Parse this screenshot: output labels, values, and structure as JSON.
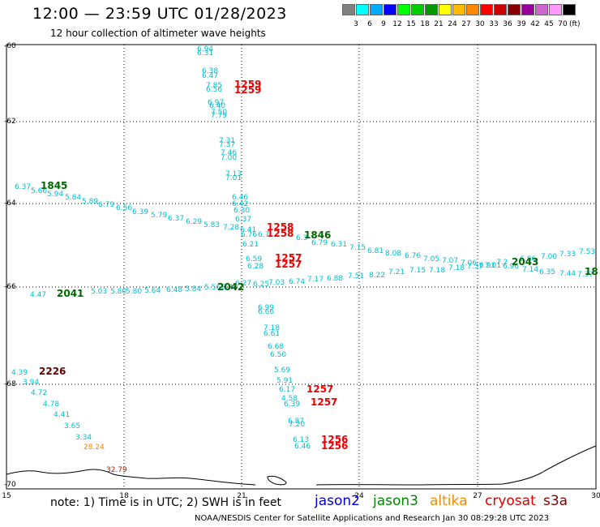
{
  "title": "12:00 — 23:59 UTC 01/28/2023",
  "subtitle": "12 hour collection of altimeter wave heights",
  "colorbar": {
    "colors": [
      "#808080",
      "#00ffff",
      "#00aaff",
      "#0000ff",
      "#00ff00",
      "#00cc00",
      "#009900",
      "#ffff00",
      "#ffbb00",
      "#ff8800",
      "#ff0000",
      "#cc0000",
      "#880000",
      "#990099",
      "#cc66cc",
      "#ff99ff",
      "#000000"
    ],
    "labels": [
      "3",
      "6",
      "9",
      "12",
      "15",
      "18",
      "21",
      "24",
      "27",
      "30",
      "33",
      "36",
      "39",
      "42",
      "45",
      "70"
    ],
    "unit": "(ft)"
  },
  "axes": {
    "x_ticks": [
      "15",
      "18",
      "21",
      "24",
      "27",
      "30"
    ],
    "y_ticks": [
      "-60",
      "-62",
      "-64",
      "-66",
      "-68",
      "-70"
    ]
  },
  "note": "note: 1) Time is in UTC; 2) SWH is in feet",
  "credit": "NOAA/NESDIS Center for Satellite Applications and Research    Jan 30 08:29:28 UTC 2023",
  "satellites": [
    {
      "name": "jason2",
      "color": "#0000dd"
    },
    {
      "name": "jason3",
      "color": "#008800"
    },
    {
      "name": "altika",
      "color": "#ff8800"
    },
    {
      "name": "cryosat",
      "color": "#dd0000"
    },
    {
      "name": "s3a",
      "color": "#880000"
    }
  ],
  "colors": {
    "cyan": "#00c0d0",
    "green": "#006600",
    "red": "#ee0000",
    "darkred": "#660000",
    "orange": "#ee8800",
    "brownred": "#aa2200"
  },
  "pass_labels": [
    {
      "text": "1845",
      "color": "green"
    },
    {
      "text": "1259",
      "color": "red"
    },
    {
      "text": "1259",
      "color": "red"
    },
    {
      "text": "1258",
      "color": "red"
    },
    {
      "text": "1258",
      "color": "red"
    },
    {
      "text": "1846",
      "color": "green"
    },
    {
      "text": "1257",
      "color": "red"
    },
    {
      "text": "1257",
      "color": "red"
    },
    {
      "text": "2042",
      "color": "green"
    },
    {
      "text": "2041",
      "color": "green"
    },
    {
      "text": "2043",
      "color": "green"
    },
    {
      "text": "18",
      "color": "green"
    },
    {
      "text": "2226",
      "color": "darkred"
    },
    {
      "text": "1257",
      "color": "red"
    },
    {
      "text": "1257",
      "color": "red"
    },
    {
      "text": "1256",
      "color": "red"
    },
    {
      "text": "1256",
      "color": "red"
    }
  ],
  "swh_values": [
    {
      "text": "6.94",
      "color": "cyan"
    },
    {
      "text": "6.31",
      "color": "cyan"
    },
    {
      "text": "6.38",
      "color": "cyan"
    },
    {
      "text": "6.47",
      "color": "cyan"
    },
    {
      "text": "7.85",
      "color": "cyan"
    },
    {
      "text": "6.56",
      "color": "cyan"
    },
    {
      "text": "6.97",
      "color": "cyan"
    },
    {
      "text": "6.40",
      "color": "cyan"
    },
    {
      "text": "7.50",
      "color": "cyan"
    },
    {
      "text": "7.79",
      "color": "cyan"
    },
    {
      "text": "7.31",
      "color": "cyan"
    },
    {
      "text": "7.37",
      "color": "cyan"
    },
    {
      "text": "7.46",
      "color": "cyan"
    },
    {
      "text": "7.00",
      "color": "cyan"
    },
    {
      "text": "7.13",
      "color": "cyan"
    },
    {
      "text": "7.01",
      "color": "cyan"
    },
    {
      "text": "6.37",
      "color": "cyan"
    },
    {
      "text": "5.66",
      "color": "cyan"
    },
    {
      "text": "5.94",
      "color": "cyan"
    },
    {
      "text": "5.84",
      "color": "cyan"
    },
    {
      "text": "5.89",
      "color": "cyan"
    },
    {
      "text": "6.79",
      "color": "cyan"
    },
    {
      "text": "6.56",
      "color": "cyan"
    },
    {
      "text": "6.39",
      "color": "cyan"
    },
    {
      "text": "5.79",
      "color": "cyan"
    },
    {
      "text": "6.37",
      "color": "cyan"
    },
    {
      "text": "6.29",
      "color": "cyan"
    },
    {
      "text": "5.83",
      "color": "cyan"
    },
    {
      "text": "6.46",
      "color": "cyan"
    },
    {
      "text": "6.42",
      "color": "cyan"
    },
    {
      "text": "6.30",
      "color": "cyan"
    },
    {
      "text": "6.37",
      "color": "cyan"
    },
    {
      "text": "7.28",
      "color": "cyan"
    },
    {
      "text": "6.41",
      "color": "cyan"
    },
    {
      "text": "6.76",
      "color": "cyan"
    },
    {
      "text": "6.7",
      "color": "cyan"
    },
    {
      "text": "6.21",
      "color": "cyan"
    },
    {
      "text": "6.3",
      "color": "cyan"
    },
    {
      "text": "6.79",
      "color": "cyan"
    },
    {
      "text": "6.31",
      "color": "cyan"
    },
    {
      "text": "7.15",
      "color": "cyan"
    },
    {
      "text": "6.81",
      "color": "cyan"
    },
    {
      "text": "8.08",
      "color": "cyan"
    },
    {
      "text": "6.76",
      "color": "cyan"
    },
    {
      "text": "7.05",
      "color": "cyan"
    },
    {
      "text": "7.07",
      "color": "cyan"
    },
    {
      "text": "7.06",
      "color": "cyan"
    },
    {
      "text": "6.91",
      "color": "cyan"
    },
    {
      "text": "7.2",
      "color": "cyan"
    },
    {
      "text": "6.86",
      "color": "cyan"
    },
    {
      "text": "7.00",
      "color": "cyan"
    },
    {
      "text": "7.33",
      "color": "cyan"
    },
    {
      "text": "7.53",
      "color": "cyan"
    },
    {
      "text": "6.59",
      "color": "cyan"
    },
    {
      "text": "6.28",
      "color": "cyan"
    },
    {
      "text": "6.25",
      "color": "cyan"
    },
    {
      "text": "7.03",
      "color": "cyan"
    },
    {
      "text": "6.74",
      "color": "cyan"
    },
    {
      "text": "7.17",
      "color": "cyan"
    },
    {
      "text": "6.88",
      "color": "cyan"
    },
    {
      "text": "7.51",
      "color": "cyan"
    },
    {
      "text": "8.22",
      "color": "cyan"
    },
    {
      "text": "7.21",
      "color": "cyan"
    },
    {
      "text": "7.15",
      "color": "cyan"
    },
    {
      "text": "7.18",
      "color": "cyan"
    },
    {
      "text": "7.18",
      "color": "cyan"
    },
    {
      "text": "7.37",
      "color": "cyan"
    },
    {
      "text": "7.01",
      "color": "cyan"
    },
    {
      "text": "6.96",
      "color": "cyan"
    },
    {
      "text": "7.14",
      "color": "cyan"
    },
    {
      "text": "6.35",
      "color": "cyan"
    },
    {
      "text": "7.44",
      "color": "cyan"
    },
    {
      "text": "7.37",
      "color": "cyan"
    },
    {
      "text": "4.47",
      "color": "cyan"
    },
    {
      "text": "5.03",
      "color": "cyan"
    },
    {
      "text": "5.80",
      "color": "cyan"
    },
    {
      "text": "5.80",
      "color": "cyan"
    },
    {
      "text": "5.64",
      "color": "cyan"
    },
    {
      "text": "6.48",
      "color": "cyan"
    },
    {
      "text": "5.84",
      "color": "cyan"
    },
    {
      "text": "5.56",
      "color": "cyan"
    },
    {
      "text": "6.44",
      "color": "cyan"
    },
    {
      "text": "6.27",
      "color": "cyan"
    },
    {
      "text": "6.99",
      "color": "cyan"
    },
    {
      "text": "6.66",
      "color": "cyan"
    },
    {
      "text": "7.18",
      "color": "cyan"
    },
    {
      "text": "6.61",
      "color": "cyan"
    },
    {
      "text": "6.68",
      "color": "cyan"
    },
    {
      "text": "6.50",
      "color": "cyan"
    },
    {
      "text": "4.39",
      "color": "cyan"
    },
    {
      "text": "3.94",
      "color": "cyan"
    },
    {
      "text": "4.72",
      "color": "cyan"
    },
    {
      "text": "4.78",
      "color": "cyan"
    },
    {
      "text": "4.41",
      "color": "cyan"
    },
    {
      "text": "3.65",
      "color": "cyan"
    },
    {
      "text": "3.34",
      "color": "cyan"
    },
    {
      "text": "28.24",
      "color": "orange"
    },
    {
      "text": "32.79",
      "color": "brownred"
    },
    {
      "text": "5.69",
      "color": "cyan"
    },
    {
      "text": "5.91",
      "color": "cyan"
    },
    {
      "text": "6.17",
      "color": "cyan"
    },
    {
      "text": "4.58",
      "color": "cyan"
    },
    {
      "text": "6.39",
      "color": "cyan"
    },
    {
      "text": "6.87",
      "color": "cyan"
    },
    {
      "text": "7.20",
      "color": "cyan"
    },
    {
      "text": "6.13",
      "color": "cyan"
    },
    {
      "text": "6.46",
      "color": "cyan"
    }
  ]
}
